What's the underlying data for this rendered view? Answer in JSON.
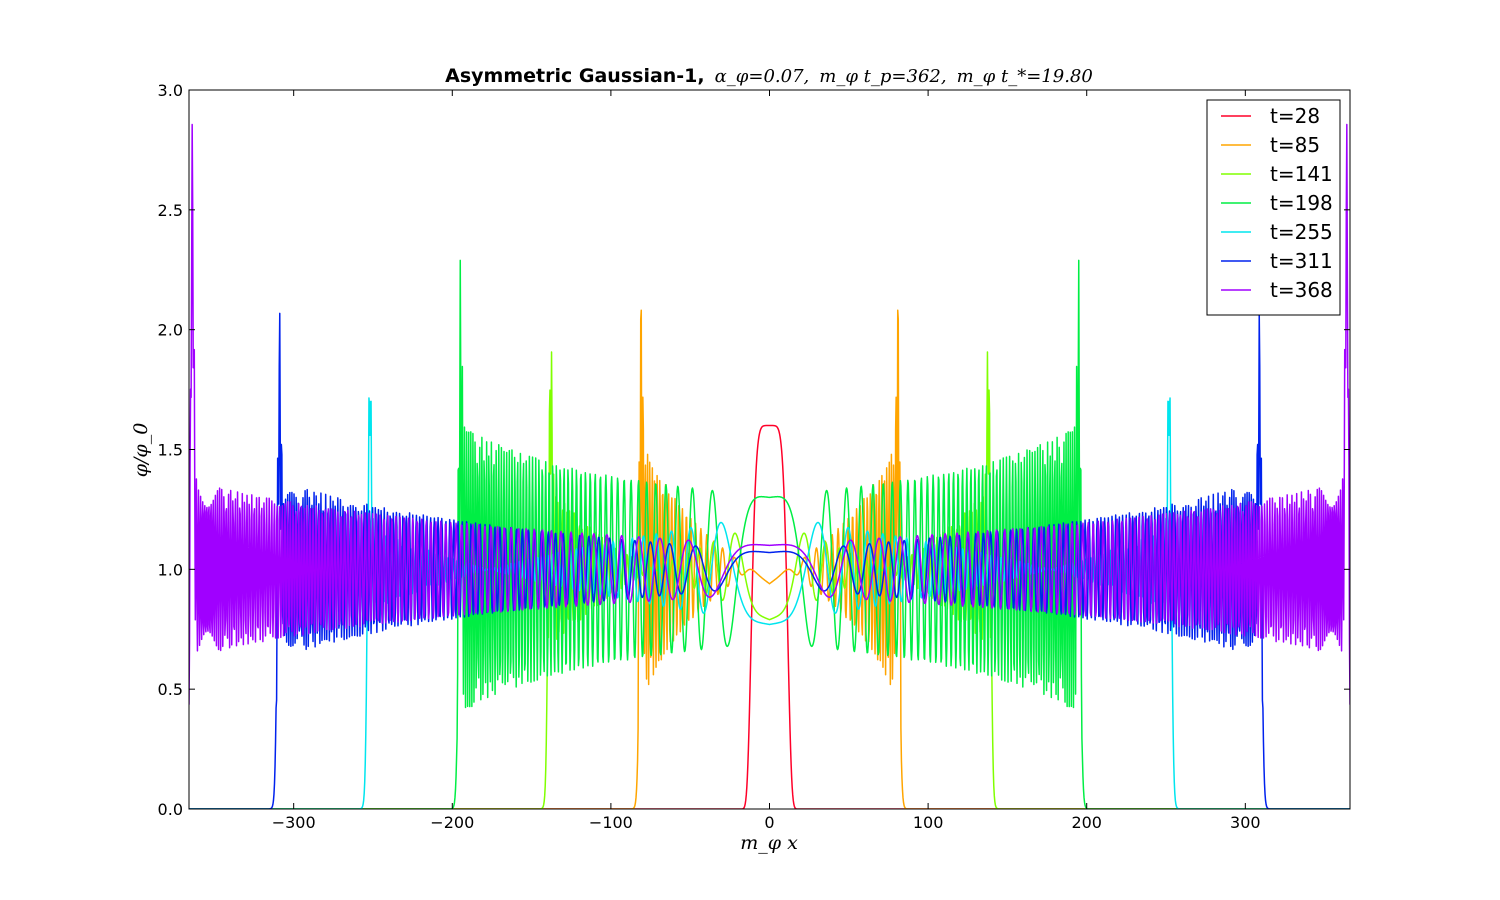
{
  "chart_data": {
    "type": "line",
    "title": {
      "bold": "Asymmetric Gaussian-1, ",
      "math": "α",
      "math_sub": "φ",
      "rest": "=0.07, ",
      "parts": [
        "Asymmetric Gaussian-1,",
        "α_φ=0.07,",
        "m_φ t_p=362,",
        "m_φ t_*=19.80"
      ]
    },
    "xlabel": "m_φ x",
    "ylabel": "φ/φ_0",
    "xlim": [
      -366,
      366
    ],
    "ylim": [
      0,
      3.0
    ],
    "xticks": [
      -300,
      -200,
      -100,
      0,
      100,
      200,
      300
    ],
    "xtick_labels": [
      "−300",
      "−200",
      "−100",
      "0",
      "100",
      "200",
      "300"
    ],
    "yticks": [
      0.0,
      0.5,
      1.0,
      1.5,
      2.0,
      2.5,
      3.0
    ],
    "ytick_labels": [
      "0.0",
      "0.5",
      "1.0",
      "1.5",
      "2.0",
      "2.5",
      "3.0"
    ],
    "legend_position": "top-right",
    "series": [
      {
        "name": "t=28",
        "color": "#ff0029",
        "front": 20,
        "center": 1.6,
        "mean": 1.0,
        "amp": 0.6,
        "spike": 1.6,
        "width": 12
      },
      {
        "name": "t=85",
        "color": "#ffa500",
        "front": 83,
        "center": 0.94,
        "mean": 1.0,
        "amp": 0.52,
        "spike": 1.75
      },
      {
        "name": "t=141",
        "color": "#80ff00",
        "front": 140,
        "center": 0.79,
        "mean": 1.0,
        "amp": 0.42,
        "spike": 1.75
      },
      {
        "name": "t=198",
        "color": "#00ee44",
        "front": 197,
        "center": 1.3,
        "mean": 1.0,
        "amp": 0.33,
        "spike": 1.76
      },
      {
        "name": "t=255",
        "color": "#00e5ee",
        "front": 254,
        "center": 0.77,
        "mean": 1.0,
        "amp": 0.29,
        "spike": 1.78
      },
      {
        "name": "t=311",
        "color": "#0022ee",
        "front": 311,
        "center": 1.07,
        "mean": 1.0,
        "amp": 0.27,
        "spike": 1.79
      },
      {
        "name": "t=368",
        "color": "#a000ff",
        "front": 366,
        "center": 1.1,
        "mean": 1.0,
        "amp": 0.25,
        "spike": 2.58
      }
    ]
  }
}
